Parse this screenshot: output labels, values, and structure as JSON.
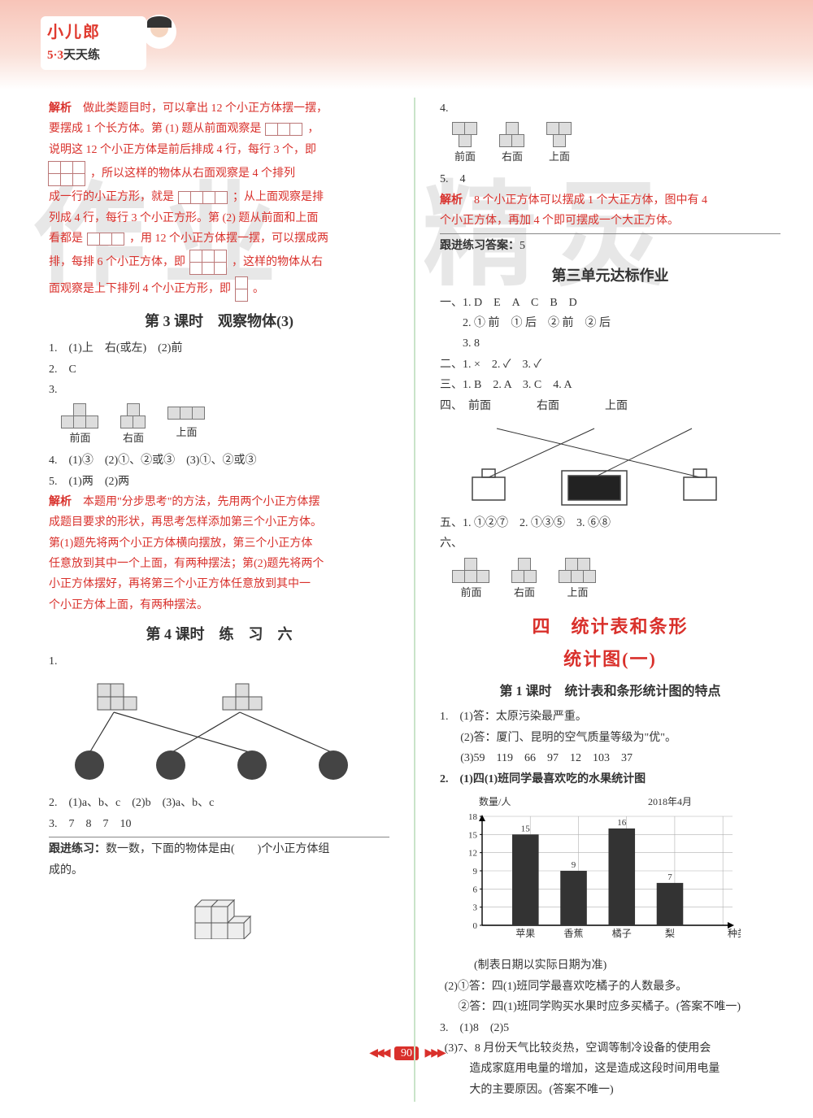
{
  "header": {
    "brand_title": "小儿郎",
    "brand_sub_prefix": "5·3",
    "brand_sub_suffix": "天天练"
  },
  "watermark": {
    "left": "作业",
    "right": "精灵"
  },
  "left_col": {
    "jiexi_label": "解析",
    "jiexi1_l1": "做此类题目时，可以拿出 12 个小正方体摆一摆，",
    "jiexi1_l2": "要摆成 1 个长方体。第 (1) 题从前面观察是",
    "jiexi1_l3": "说明这 12 个小正方体是前后排成 4 行，每行 3 个，即",
    "jiexi1_l4": "，所以这样的物体从右面观察是 4 个排列",
    "jiexi1_l5": "成一行的小正方形，就是",
    "jiexi1_l5b": "；从上面观察是排",
    "jiexi1_l6": "列成 4 行，每行 3 个小正方形。第 (2) 题从前面和上面",
    "jiexi1_l7": "看都是",
    "jiexi1_l7b": "，用 12 个小正方体摆一摆，可以摆成两",
    "jiexi1_l8": "排，每排 6 个小正方体，即",
    "jiexi1_l8b": "，这样的物体从右",
    "jiexi1_l9": "面观察是上下排列 4 个小正方形，即",
    "lesson3_title": "第 3 课时　观察物体(3)",
    "q1": "1.　(1)上　右(或左)　(2)前",
    "q2": "2.　C",
    "q3": "3.",
    "views": {
      "front": "前面",
      "right": "右面",
      "top": "上面"
    },
    "q4": "4.　(1)③　(2)①、②或③　(3)①、②或③",
    "q5": "5.　(1)两　(2)两",
    "jiexi2_a": "本题用\"分步思考\"的方法，先用两个小正方体摆",
    "jiexi2_b": "成题目要求的形状，再思考怎样添加第三个小正方体。",
    "jiexi2_c": "第(1)题先将两个小正方体横向摆放，第三个小正方体",
    "jiexi2_d": "任意放到其中一个上面，有两种摆法；第(2)题先将两个",
    "jiexi2_e": "小正方体摆好，再将第三个小正方体任意放到其中一",
    "jiexi2_f": "个小正方体上面，有两种摆法。",
    "lesson4_title": "第 4 课时　练　习　六",
    "l4_q1": "1.",
    "l4_q2": "2.　(1)a、b、c　(2)b　(3)a、b、c",
    "l4_q3": "3.　7　8　7　10",
    "followup_label": "跟进练习：",
    "followup_text": "数一数，下面的物体是由(　　)个小正方体组",
    "followup_text2": "成的。"
  },
  "right_col": {
    "q4": "4.",
    "views": {
      "front": "前面",
      "right": "右面",
      "top": "上面"
    },
    "q5": "5.　4",
    "jiexi3_a": "8 个小正方体可以摆成 1 个大正方体，图中有 4",
    "jiexi3_b": "个小正方体，再加 4 个即可摆成一个大正方体。",
    "followup_ans_label": "跟进练习答案：",
    "followup_ans_val": "5",
    "unit3_title": "第三单元达标作业",
    "u3_1": "一、1. D　E　A　C　B　D",
    "u3_1b": "2. ① 前　① 后　② 前　② 后",
    "u3_1c": "3. 8",
    "u3_2": "二、1. ×　2. ✓　3. ✓",
    "u3_3": "三、1. B　2. A　3. C　4. A",
    "u3_4": "四、　前面　　　　右面　　　　上面",
    "u3_5": "五、1. ①②⑦　2. ①③⑤　3. ⑥⑧",
    "u3_6": "六、",
    "unit4_title_a": "四　统计表和条形",
    "unit4_title_b": "统计图(一)",
    "lesson1_title": "第 1 课时　统计表和条形统计图的特点",
    "c1_1a": "1.　(1)答：太原污染最严重。",
    "c1_1b": "(2)答：厦门、昆明的空气质量等级为\"优\"。",
    "c1_1c": "(3)59　119　66　97　12　103　37",
    "c1_2a": "2.　(1)四(1)班同学最喜欢吃的水果统计图",
    "chart": {
      "type": "bar",
      "y_label": "数量/人",
      "date": "2018年4月",
      "x_label": "种类",
      "categories": [
        "苹果",
        "香蕉",
        "橘子",
        "梨"
      ],
      "values": [
        15,
        9,
        16,
        7
      ],
      "ymax": 18,
      "ytick": 3,
      "bar_color": "#333333",
      "grid_color": "#b0b0b0",
      "background": "#ffffff",
      "axis_color": "#000000"
    },
    "chart_note": "(制表日期以实际日期为准)",
    "c1_2b": "(2)①答：四(1)班同学最喜欢吃橘子的人数最多。",
    "c1_2c": "②答：四(1)班同学购买水果时应多买橘子。(答案不唯一)",
    "c1_3a": "3.　(1)8　(2)5",
    "c1_3b": "(3)7、8 月份天气比较炎热，空调等制冷设备的使用会",
    "c1_3c": "造成家庭用电量的增加，这是造成这段时间用电量",
    "c1_3d": "大的主要原因。(答案不唯一)"
  },
  "footer": {
    "page": "90"
  }
}
